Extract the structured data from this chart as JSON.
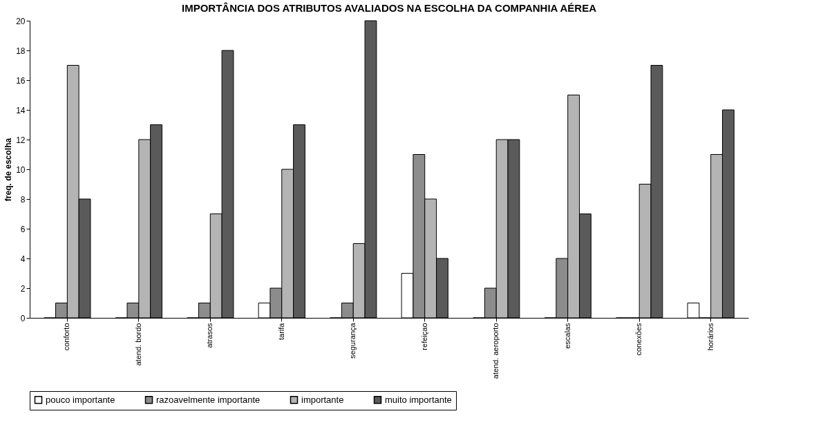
{
  "chart_data": {
    "type": "bar",
    "title": "IMPORTÂNCIA DOS ATRIBUTOS AVALIADOS NA ESCOLHA DA COMPANHIA AÉREA",
    "ylabel": "freq. de escolha",
    "categories": [
      "conforto",
      "atend. bordo",
      "atrasos",
      "tarifa",
      "segurança",
      "refeiçao",
      "atend. aeroporto",
      "escalas",
      "conexões",
      "horários"
    ],
    "series": [
      {
        "name": "pouco importante",
        "color": "#ffffff",
        "values": [
          0,
          0,
          0,
          1,
          0,
          3,
          0,
          0,
          0,
          1
        ]
      },
      {
        "name": "razoavelmente importante",
        "color": "#8c8c8c",
        "values": [
          1,
          1,
          1,
          2,
          1,
          11,
          2,
          4,
          0,
          0
        ]
      },
      {
        "name": "importante",
        "color": "#b4b4b4",
        "values": [
          17,
          12,
          7,
          10,
          5,
          8,
          12,
          15,
          9,
          11
        ]
      },
      {
        "name": "muito importante",
        "color": "#5a5a5a",
        "values": [
          8,
          13,
          18,
          13,
          20,
          4,
          12,
          7,
          17,
          14
        ]
      }
    ],
    "ylim": [
      0,
      20
    ],
    "yticks": [
      0,
      2,
      4,
      6,
      8,
      10,
      12,
      14,
      16,
      18,
      20
    ],
    "grid": false,
    "legend": "bottom"
  }
}
